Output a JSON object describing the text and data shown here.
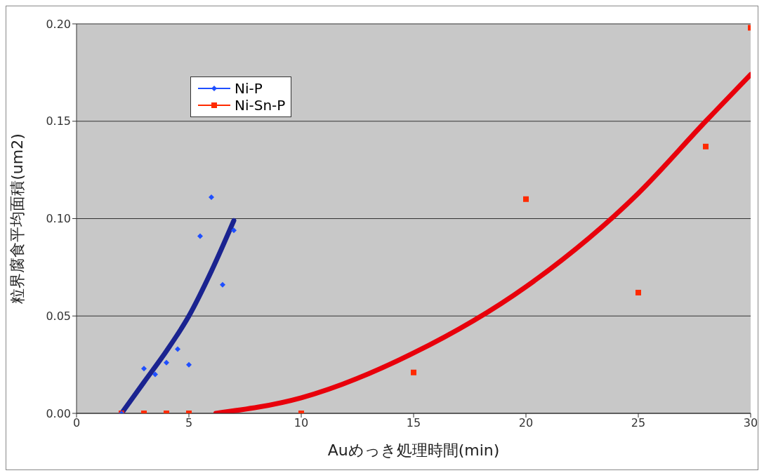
{
  "chart_data": {
    "type": "scatter",
    "xlabel": "Auめっき処理時間(min)",
    "ylabel": "粒界腐食平均面積(um2)",
    "xlim": [
      0,
      30
    ],
    "xticks": [
      0,
      5,
      10,
      15,
      20,
      25,
      30
    ],
    "ylim": [
      0,
      0.2
    ],
    "yticks": [
      {
        "value": 0,
        "label": "0.00"
      },
      {
        "value": 0.05,
        "label": "0.05"
      },
      {
        "value": 0.1,
        "label": "0.10"
      },
      {
        "value": 0.15,
        "label": "0.15"
      },
      {
        "value": 0.2,
        "label": "0.20"
      }
    ],
    "grid": "y",
    "legend": "top left",
    "series": [
      {
        "name": "Ni-P",
        "marker": "diamond",
        "color": "#1f4fff",
        "x": [
          2,
          3,
          3.5,
          4,
          4.5,
          5,
          5.5,
          6,
          6.5,
          7
        ],
        "values": [
          0.0,
          0.023,
          0.02,
          0.026,
          0.033,
          0.025,
          0.091,
          0.111,
          0.066,
          0.094
        ]
      },
      {
        "name": "Ni-Sn-P",
        "marker": "square",
        "color": "#ff2a00",
        "x": [
          2,
          3,
          4,
          5,
          10,
          15,
          20,
          25,
          28,
          30
        ],
        "values": [
          0.0,
          0.0,
          0.0,
          0.0,
          0.0,
          0.021,
          0.11,
          0.062,
          0.137,
          0.198
        ]
      },
      {
        "type": "line",
        "marker": "none",
        "color": "#1a2390",
        "x": [
          2,
          3,
          4,
          5,
          6,
          7
        ],
        "values": [
          0.0,
          0.016,
          0.032,
          0.05,
          0.073,
          0.099
        ]
      },
      {
        "type": "line",
        "marker": "none",
        "color": "#e8000b",
        "x": [
          6.2,
          10,
          15,
          20,
          25,
          28,
          30
        ],
        "values": [
          0.0,
          0.008,
          0.031,
          0.065,
          0.113,
          0.15,
          0.174
        ]
      }
    ]
  }
}
